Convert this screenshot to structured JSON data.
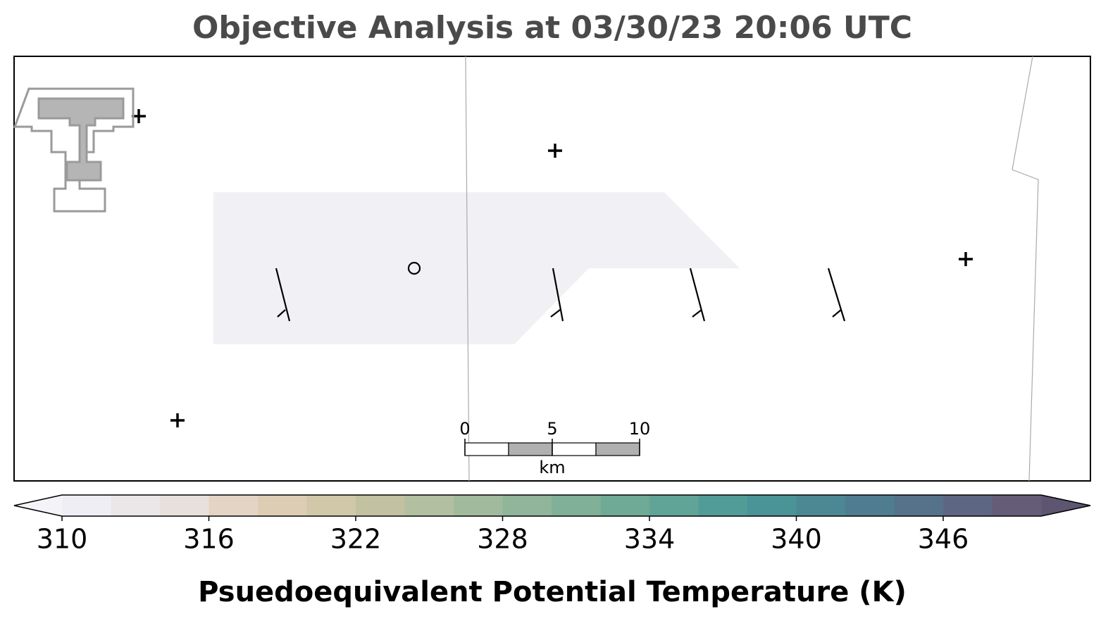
{
  "title": "Objective Analysis at 03/30/23 20:06 UTC",
  "scale_bar": {
    "ticks": [
      0,
      5,
      10
    ],
    "unit": "km"
  },
  "colorbar": {
    "label": "Psuedoequivalent Potential Temperature (K)",
    "lim": [
      310,
      350
    ],
    "ticks": [
      310,
      316,
      322,
      328,
      334,
      340,
      346
    ],
    "under_color": "#f4f3f8",
    "over_color": "#5e5670",
    "colors": [
      "#efeef4",
      "#ebe7e9",
      "#e8e0dc",
      "#e3d4c5",
      "#dccdb4",
      "#d0c8a8",
      "#c2c2a2",
      "#b2bfa1",
      "#a1ba9d",
      "#90b59a",
      "#80b097",
      "#6faa96",
      "#60a497",
      "#519c97",
      "#4a9396",
      "#4b8893",
      "#4f7d8f",
      "#56728a",
      "#5d6682",
      "#655d77"
    ]
  }
}
